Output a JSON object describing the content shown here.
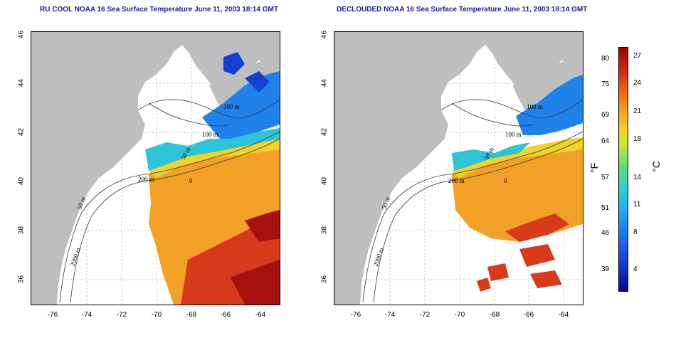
{
  "left_panel": {
    "title": "RU COOL NOAA 16 Sea Surface Temperature June 11, 2003 18:14 GMT"
  },
  "right_panel": {
    "title": "DECLOUDED NOAA 16 Sea Surface Temperature June 11, 2003 18:14 GMT"
  },
  "axes": {
    "lat_ticks": [
      "46",
      "44",
      "42",
      "40",
      "38",
      "36"
    ],
    "lon_ticks": [
      "-76",
      "-74",
      "-72",
      "-70",
      "-68",
      "-66",
      "-64"
    ]
  },
  "contour_labels": {
    "left": [
      "100 m",
      "100 m",
      "50 m",
      "200 m",
      "50 m",
      "2000 m",
      "0"
    ],
    "right": [
      "100 m",
      "100 m",
      "50 m",
      "200 m",
      "50 m",
      "2000 m",
      "0"
    ]
  },
  "colorbar": {
    "fahrenheit_ticks": [
      "80",
      "75",
      "69",
      "64",
      "57",
      "51",
      "46",
      "39"
    ],
    "celsius_ticks": [
      "27",
      "24",
      "21",
      "18",
      "14",
      "11",
      "8",
      "4"
    ],
    "unit_f": "°F",
    "unit_c": "°C",
    "colors": [
      "#0a0a8c",
      "#1e78f0",
      "#28d2c8",
      "#c8e632",
      "#f5a01e",
      "#dc2814",
      "#a00000"
    ]
  }
}
